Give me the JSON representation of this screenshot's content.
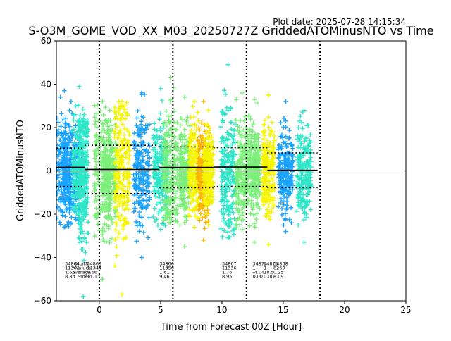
{
  "plot_date": "Plot date: 2025-07-28 14:15:34",
  "chart_data": {
    "type": "scatter",
    "title": "S-O3M_GOME_VOD_XX_M03_20250727Z GriddedATOMinusNTO vs Time",
    "xlabel": "Time from Forecast 00Z [Hour]",
    "ylabel": "GriddedATOMinusNTO",
    "xlim": [
      -3.5,
      25
    ],
    "ylim": [
      -60,
      60
    ],
    "xticks": [
      0,
      5,
      10,
      15,
      20,
      25
    ],
    "yticks": [
      -60,
      -40,
      -20,
      0,
      20,
      40,
      60
    ],
    "grid": false,
    "legend": "none",
    "zero_line": 0,
    "forecast_lines_x": [
      0,
      6,
      12,
      18
    ],
    "marker": "+",
    "colors": {
      "blue": "#1aa3ff",
      "teal": "#2ee6c8",
      "green": "#7cf07a",
      "yellow": "#f5f500",
      "orange": "#ffb300",
      "mean_line": "#000000",
      "stdev_line": "#000000"
    },
    "orbit_bands": [
      {
        "x0": -3.5,
        "x1": -2.2,
        "color": "blue",
        "min": -26,
        "max": 37
      },
      {
        "x0": -3.0,
        "x1": -1.6,
        "color": "blue",
        "min": -24,
        "max": 32
      },
      {
        "x0": -2.2,
        "x1": -1.1,
        "color": "teal",
        "min": -22,
        "max": 39
      },
      {
        "x0": -1.7,
        "x1": -0.9,
        "color": "teal",
        "min": -58,
        "max": 24
      },
      {
        "x0": -0.4,
        "x1": 0.9,
        "color": "green",
        "min": -50,
        "max": 32
      },
      {
        "x0": 0.3,
        "x1": 1.4,
        "color": "green",
        "min": -33,
        "max": 28
      },
      {
        "x0": 1.2,
        "x1": 2.5,
        "color": "yellow",
        "min": -57,
        "max": 32
      },
      {
        "x0": 2.8,
        "x1": 4.1,
        "color": "blue",
        "min": -40,
        "max": 36
      },
      {
        "x0": 4.4,
        "x1": 5.6,
        "color": "teal",
        "min": -27,
        "max": 38
      },
      {
        "x0": 5.2,
        "x1": 6.4,
        "color": "green",
        "min": -24,
        "max": 43
      },
      {
        "x0": 6.5,
        "x1": 7.4,
        "color": "green",
        "min": -35,
        "max": 34
      },
      {
        "x0": 7.3,
        "x1": 8.2,
        "color": "yellow",
        "min": -26,
        "max": 32
      },
      {
        "x0": 8.0,
        "x1": 9.0,
        "color": "orange",
        "min": -32,
        "max": 32
      },
      {
        "x0": 8.5,
        "x1": 9.3,
        "color": "yellow",
        "min": -25,
        "max": 28
      },
      {
        "x0": 9.9,
        "x1": 11.1,
        "color": "teal",
        "min": -31,
        "max": 49
      },
      {
        "x0": 11.1,
        "x1": 12.2,
        "color": "green",
        "min": -27,
        "max": 36
      },
      {
        "x0": 12.2,
        "x1": 13.1,
        "color": "green",
        "min": -33,
        "max": 33
      },
      {
        "x0": 13.3,
        "x1": 14.3,
        "color": "yellow",
        "min": -34,
        "max": 35
      },
      {
        "x0": 14.6,
        "x1": 15.8,
        "color": "blue",
        "min": -28,
        "max": 32
      },
      {
        "x0": 16.1,
        "x1": 17.3,
        "color": "teal",
        "min": -33,
        "max": 28
      }
    ],
    "mean_segments": [
      {
        "x0": -3.5,
        "x1": -1.2,
        "y": 1.65
      },
      {
        "x0": -1.2,
        "x1": 4.9,
        "y": 0.66
      },
      {
        "x0": 4.9,
        "x1": 9.3,
        "y": 1.61
      },
      {
        "x0": 9.3,
        "x1": 13.7,
        "y": 1.76
      },
      {
        "x0": 13.7,
        "x1": 17.8,
        "y": 0.25
      }
    ],
    "stdev_segments": [
      {
        "x0": -3.5,
        "x1": -1.2,
        "lo": -7.2,
        "hi": 10.5
      },
      {
        "x0": -1.2,
        "x1": 4.9,
        "lo": -10.5,
        "hi": 11.8
      },
      {
        "x0": 4.9,
        "x1": 9.3,
        "lo": -7.8,
        "hi": 11.1
      },
      {
        "x0": 9.3,
        "x1": 13.7,
        "lo": -7.2,
        "hi": 10.7
      },
      {
        "x0": 13.7,
        "x1": 17.8,
        "lo": -7.8,
        "hi": 8.3
      }
    ],
    "stats_row_labels": [
      "OrbitNr",
      "NValues",
      "Average",
      "Stdev"
    ],
    "stats_blocks": [
      {
        "x": -2.8,
        "values": [
          "34864",
          "11361",
          "1.65",
          "8.83"
        ]
      },
      {
        "x": -1.0,
        "values": [
          "34865",
          "11344",
          "0.66",
          "11.13"
        ]
      },
      {
        "x": 4.9,
        "values": [
          "34866",
          "11356",
          "1.61",
          "9.46"
        ]
      },
      {
        "x": 10.0,
        "values": [
          "34867",
          "11336",
          "1.76",
          "8.95"
        ]
      },
      {
        "x": 12.5,
        "values": [
          "34874",
          "1",
          "-4.04",
          "0.00"
        ]
      },
      {
        "x": 13.4,
        "values": [
          "34875",
          "1",
          "18.5",
          "0.00"
        ]
      },
      {
        "x": 14.2,
        "values": [
          "34868",
          "8269",
          "0.25",
          "8.09"
        ]
      }
    ],
    "stats_label_x": -0.7
  }
}
